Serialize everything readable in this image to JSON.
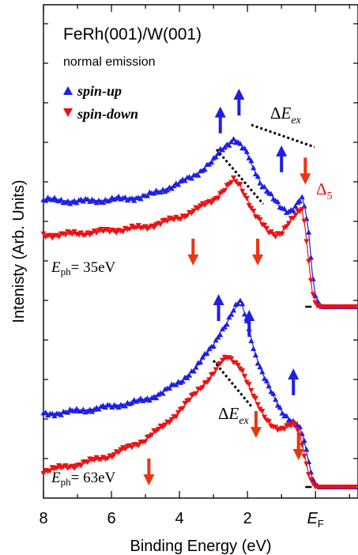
{
  "chart_data": {
    "type": "scatter",
    "title": "FeRh(001)/W(001)",
    "subtitle": "normal emission",
    "xlabel": "Binding Energy (eV)",
    "ylabel": "Intenisty (Arb. Units)",
    "xlim": [
      8,
      -1.25
    ],
    "x_reversed": true,
    "xticks": [
      {
        "value": 8,
        "label": "8"
      },
      {
        "value": 6,
        "label": "6"
      },
      {
        "value": 4,
        "label": "4"
      },
      {
        "value": 2,
        "label": "2"
      },
      {
        "value": 0,
        "label": "E_F"
      }
    ],
    "y_ticks_labeled": false,
    "legend": {
      "position": "top-left",
      "entries": [
        {
          "name": "spin-up",
          "color": "#1f1fe6",
          "marker": "triangle-up"
        },
        {
          "name": "spin-down",
          "color": "#ee1111",
          "marker": "triangle-down"
        }
      ]
    },
    "panels": [
      {
        "label": "E_ph= 35eV",
        "label_main": "E",
        "label_sub": "ph",
        "label_rest": "= 35eV",
        "baseline": 0,
        "series": [
          {
            "name": "spin-up",
            "color": "#1f1fe6",
            "x": [
              8.0,
              7.0,
              6.0,
              5.0,
              4.5,
              4.0,
              3.5,
              3.0,
              2.8,
              2.6,
              2.4,
              2.2,
              2.0,
              1.8,
              1.6,
              1.4,
              1.2,
              1.0,
              0.8,
              0.6,
              0.5,
              0.4,
              0.3,
              0.2,
              0.1,
              0.0,
              -0.1,
              -0.2,
              -0.4,
              -0.8,
              -1.2
            ],
            "y": [
              0.66,
              0.65,
              0.66,
              0.68,
              0.72,
              0.76,
              0.82,
              0.9,
              0.96,
              1.0,
              1.04,
              1.0,
              0.94,
              0.84,
              0.76,
              0.72,
              0.66,
              0.6,
              0.58,
              0.62,
              0.66,
              0.68,
              0.6,
              0.46,
              0.22,
              0.06,
              0.02,
              0.0,
              0.0,
              0.0,
              0.0
            ]
          },
          {
            "name": "spin-down",
            "color": "#ee1111",
            "x": [
              8.0,
              7.0,
              6.0,
              5.0,
              4.5,
              4.0,
              3.5,
              3.0,
              2.8,
              2.6,
              2.4,
              2.2,
              2.0,
              1.8,
              1.6,
              1.4,
              1.2,
              1.0,
              0.8,
              0.6,
              0.4,
              0.3,
              0.2,
              0.1,
              0.0,
              -0.1,
              -0.2,
              -0.4,
              -0.8,
              -1.2
            ],
            "y": [
              0.44,
              0.45,
              0.47,
              0.49,
              0.52,
              0.55,
              0.6,
              0.66,
              0.7,
              0.74,
              0.78,
              0.74,
              0.66,
              0.58,
              0.52,
              0.46,
              0.44,
              0.46,
              0.52,
              0.56,
              0.6,
              0.48,
              0.28,
              0.1,
              0.02,
              0.0,
              0.0,
              0.0,
              0.0,
              0.0
            ]
          }
        ],
        "annotations": {
          "delta_E_ex": "ΔE_ex",
          "delta_5": "Δ5"
        }
      },
      {
        "label": "E_ph= 63eV",
        "label_main": "E",
        "label_sub": "ph",
        "label_rest": "= 63eV",
        "baseline": 0,
        "series": [
          {
            "name": "spin-up",
            "color": "#1f1fe6",
            "x": [
              8.0,
              7.0,
              6.0,
              5.0,
              4.5,
              4.0,
              3.5,
              3.0,
              2.8,
              2.6,
              2.4,
              2.2,
              2.0,
              1.8,
              1.6,
              1.4,
              1.2,
              1.0,
              0.8,
              0.6,
              0.5,
              0.4,
              0.3,
              0.2,
              0.1,
              0.0,
              -0.1,
              -0.2,
              -0.4,
              -0.8,
              -1.2
            ],
            "y": [
              0.46,
              0.48,
              0.51,
              0.55,
              0.6,
              0.66,
              0.76,
              0.9,
              0.98,
              1.04,
              1.12,
              1.18,
              1.04,
              0.86,
              0.74,
              0.64,
              0.56,
              0.48,
              0.44,
              0.4,
              0.38,
              0.34,
              0.26,
              0.16,
              0.06,
              0.02,
              0.0,
              0.0,
              0.0,
              0.0,
              0.0
            ]
          },
          {
            "name": "spin-down",
            "color": "#ee1111",
            "x": [
              8.0,
              7.0,
              6.0,
              5.0,
              4.5,
              4.0,
              3.5,
              3.0,
              2.8,
              2.6,
              2.4,
              2.2,
              2.0,
              1.8,
              1.6,
              1.4,
              1.2,
              1.0,
              0.8,
              0.6,
              0.5,
              0.4,
              0.3,
              0.2,
              0.1,
              0.0,
              -0.1,
              -0.2,
              -0.4,
              -0.8,
              -1.2
            ],
            "y": [
              0.1,
              0.14,
              0.2,
              0.3,
              0.38,
              0.48,
              0.6,
              0.72,
              0.78,
              0.82,
              0.8,
              0.76,
              0.66,
              0.56,
              0.48,
              0.42,
              0.38,
              0.36,
              0.38,
              0.4,
              0.36,
              0.28,
              0.18,
              0.08,
              0.03,
              0.0,
              0.0,
              0.0,
              0.0,
              0.0,
              0.0
            ]
          }
        ],
        "annotations": {
          "delta_E_ex": "ΔE_ex"
        }
      }
    ]
  }
}
